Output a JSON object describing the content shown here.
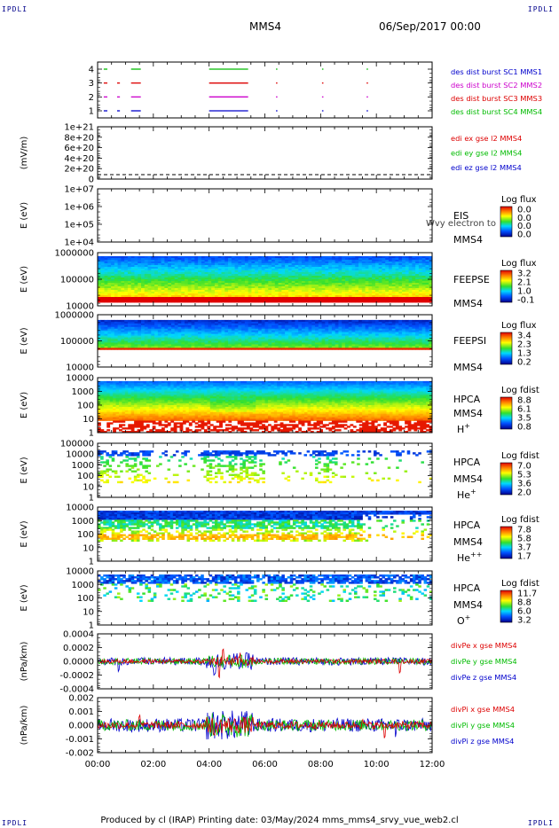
{
  "corners": {
    "tl": "IPDLI",
    "tr": "IPDLI",
    "bl": "IPDLI",
    "br": "IPDLI"
  },
  "header": {
    "title": "MMS4",
    "date": "06/Sep/2017 00:00"
  },
  "footer": {
    "text": "Produced by cl (IRAP)    Printing date: 03/May/2024    mms_mms4_srvy_vue_web2.cl"
  },
  "chart_data": [
    {
      "type": "line",
      "id": "burst",
      "yticks": [
        "4",
        "3",
        "2",
        "1"
      ],
      "legend": [
        {
          "text": "des dist burst SC1 MMS1",
          "color": "#0000cc"
        },
        {
          "text": "des dist burst SC2 MMS2",
          "color": "#cc00cc"
        },
        {
          "text": "des dist burst SC3 MMS3",
          "color": "#dd0000"
        },
        {
          "text": "des dist burst SC4 MMS4",
          "color": "#00bb00"
        }
      ],
      "series": [
        {
          "level": 4,
          "color": "#00bb00",
          "intervals": [
            [
              0.22,
              0.35
            ],
            [
              1.2,
              1.55
            ],
            [
              4.0,
              5.4
            ],
            [
              6.4,
              6.45
            ],
            [
              8.05,
              8.1
            ],
            [
              9.65,
              9.7
            ]
          ]
        },
        {
          "level": 3,
          "color": "#dd0000",
          "intervals": [
            [
              0.22,
              0.35
            ],
            [
              0.7,
              0.8
            ],
            [
              1.2,
              1.55
            ],
            [
              4.0,
              5.4
            ],
            [
              6.4,
              6.45
            ],
            [
              8.05,
              8.1
            ],
            [
              9.65,
              9.7
            ]
          ]
        },
        {
          "level": 2,
          "color": "#cc00cc",
          "intervals": [
            [
              0.22,
              0.35
            ],
            [
              0.7,
              0.8
            ],
            [
              1.2,
              1.55
            ],
            [
              4.0,
              5.4
            ],
            [
              6.4,
              6.45
            ],
            [
              8.05,
              8.1
            ],
            [
              9.65,
              9.7
            ]
          ]
        },
        {
          "level": 1,
          "color": "#0000cc",
          "intervals": [
            [
              0.22,
              0.35
            ],
            [
              0.7,
              0.8
            ],
            [
              1.2,
              1.55
            ],
            [
              4.0,
              5.4
            ],
            [
              6.4,
              6.45
            ],
            [
              8.05,
              8.1
            ],
            [
              9.65,
              9.7
            ]
          ]
        }
      ]
    },
    {
      "type": "line",
      "id": "edi",
      "ylabel": "(mV/m)",
      "yticks": [
        "1e+21",
        "8e+20",
        "6e+20",
        "4e+20",
        "2e+20",
        "0"
      ],
      "legend": [
        {
          "text": "edi ex gse l2 MMS4",
          "color": "#dd0000"
        },
        {
          "text": "edi ey gse l2 MMS4",
          "color": "#00bb00"
        },
        {
          "text": "edi ez gse l2 MMS4",
          "color": "#0000cc"
        }
      ]
    },
    {
      "type": "heatmap",
      "id": "eis",
      "ylabel": "E (eV)",
      "yticks": [
        "1e+07",
        "1e+06",
        "1e+05",
        "1e+04"
      ],
      "labels": [
        "EIS",
        "MMS4"
      ],
      "overlay": "Wvy electron to",
      "cbar_title": "Log flux",
      "cbar_ticks": [
        "0.0",
        "0.0",
        "0.0",
        "0.0"
      ]
    },
    {
      "type": "heatmap",
      "id": "feepse",
      "ylabel": "E (eV)",
      "yticks": [
        "1000000",
        "100000",
        "10000"
      ],
      "labels": [
        "FEEPSE",
        "MMS4"
      ],
      "cbar_title": "Log flux",
      "cbar_ticks": [
        "3.2",
        "2.1",
        "1.0",
        "-0.1"
      ]
    },
    {
      "type": "heatmap",
      "id": "feepsi",
      "ylabel": "E (eV)",
      "yticks": [
        "1000000",
        "100000",
        "10000"
      ],
      "labels": [
        "FEEPSI",
        "MMS4"
      ],
      "cbar_title": "Log flux",
      "cbar_ticks": [
        "3.4",
        "2.3",
        "1.3",
        "0.2"
      ]
    },
    {
      "type": "heatmap",
      "id": "hpca_h",
      "ylabel": "E (eV)",
      "yticks": [
        "10000",
        "1000",
        "100",
        "10",
        "1"
      ],
      "labels": [
        "HPCA",
        "MMS4"
      ],
      "species": "H",
      "charge": "+",
      "cbar_title": "Log fdist",
      "cbar_ticks": [
        "8.8",
        "6.1",
        "3.5",
        "0.8"
      ]
    },
    {
      "type": "heatmap",
      "id": "hpca_he",
      "ylabel": "E (eV)",
      "yticks": [
        "100000",
        "10000",
        "1000",
        "100",
        "10",
        "1"
      ],
      "labels": [
        "HPCA",
        "MMS4"
      ],
      "species": "He",
      "charge": "+",
      "cbar_title": "Log fdist",
      "cbar_ticks": [
        "7.0",
        "5.3",
        "3.6",
        "2.0"
      ]
    },
    {
      "type": "heatmap",
      "id": "hpca_he2",
      "ylabel": "E (eV)",
      "yticks": [
        "10000",
        "1000",
        "100",
        "10",
        "1"
      ],
      "labels": [
        "HPCA",
        "MMS4"
      ],
      "species": "He",
      "charge": "++",
      "cbar_title": "Log fdist",
      "cbar_ticks": [
        "7.8",
        "5.8",
        "3.7",
        "1.7"
      ]
    },
    {
      "type": "heatmap",
      "id": "hpca_o",
      "ylabel": "E (eV)",
      "yticks": [
        "10000",
        "1000",
        "100",
        "10",
        "1"
      ],
      "labels": [
        "HPCA",
        "MMS4"
      ],
      "species": "O",
      "charge": "+",
      "cbar_title": "Log fdist",
      "cbar_ticks": [
        "11.7",
        "8.8",
        "6.0",
        "3.2"
      ]
    },
    {
      "type": "line",
      "id": "divpe",
      "ylabel": "(nPa/km)",
      "yticks": [
        "0.0004",
        "0.0002",
        "0.0000",
        "-0.0002",
        "-0.0004"
      ],
      "legend": [
        {
          "text": "divPe x gse MMS4",
          "color": "#dd0000"
        },
        {
          "text": "divPe y gse MMS4",
          "color": "#00bb00"
        },
        {
          "text": "divPe z gse MMS4",
          "color": "#0000cc"
        }
      ]
    },
    {
      "type": "line",
      "id": "divpi",
      "ylabel": "(nPa/km)",
      "yticks": [
        "0.002",
        "0.001",
        "0.000",
        "-0.001",
        "-0.002"
      ],
      "legend": [
        {
          "text": "divPi x gse MMS4",
          "color": "#dd0000"
        },
        {
          "text": "divPi y gse MMS4",
          "color": "#00bb00"
        },
        {
          "text": "divPi z gse MMS4",
          "color": "#0000cc"
        }
      ]
    }
  ],
  "xaxis": {
    "ticks": [
      "00:00",
      "02:00",
      "04:00",
      "06:00",
      "08:00",
      "10:00",
      "12:00"
    ],
    "range": [
      0,
      12
    ]
  }
}
